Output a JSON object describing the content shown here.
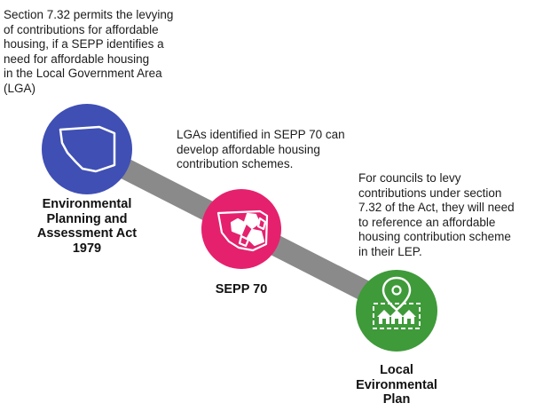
{
  "colors": {
    "connector": "#8a8a8a",
    "environmental_planning": "#3f4fb4",
    "sepp70": "#e5216e",
    "local_plan": "#3f9a3a",
    "icon_stroke": "#ffffff"
  },
  "nodes": [
    {
      "id": "environmental-planning",
      "icon": "nsw-outline-icon",
      "label": "Environmental\nPlanning and\nAssessment Act\n1979",
      "description": "Section 7.32 permits the levying\nof contributions for affordable\nhousing, if a SEPP identifies a\nneed for affordable housing\nin the Local Government Area\n(LGA)"
    },
    {
      "id": "sepp70",
      "icon": "nsw-lga-map-icon",
      "label": "SEPP 70",
      "description": "LGAs identified in SEPP 70 can\ndevelop affordable housing\ncontribution schemes."
    },
    {
      "id": "local-plan",
      "icon": "houses-location-pin-icon",
      "label": "Local\nEvironmental\nPlan",
      "description": "For councils to levy\ncontributions under section\n7.32 of the Act, they will need\nto reference an affordable\nhousing contribution scheme\nin their LEP."
    }
  ]
}
